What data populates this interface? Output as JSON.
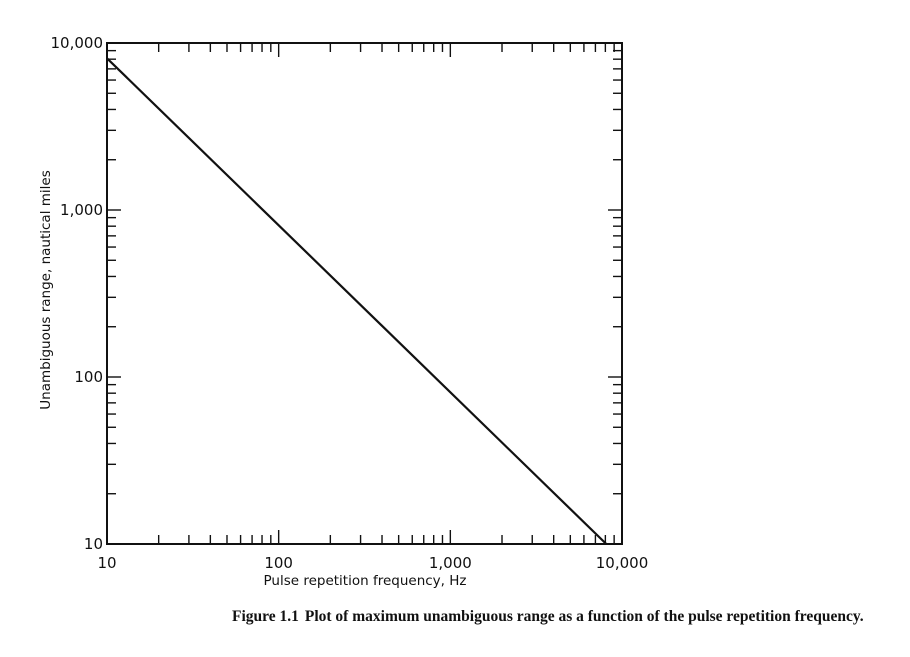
{
  "chart_data": {
    "type": "line",
    "title": "",
    "xlabel": "Pulse repetition frequency, Hz",
    "ylabel": "Unambiguous range, nautical miles",
    "xscale": "log",
    "yscale": "log",
    "xlim": [
      10,
      10000
    ],
    "ylim": [
      10,
      10000
    ],
    "x_tick_labels": [
      "10",
      "100",
      "1,000",
      "10,000"
    ],
    "y_tick_labels": [
      "10",
      "100",
      "1,000",
      "10,000"
    ],
    "x_tick_values": [
      10,
      100,
      1000,
      10000
    ],
    "y_tick_values": [
      10,
      100,
      1000,
      10000
    ],
    "grid": false,
    "legend": "none",
    "series": [
      {
        "x": [
          10,
          8100
        ],
        "y": [
          8100,
          10
        ],
        "color": "#111111"
      }
    ]
  },
  "caption": {
    "figure_number": "Figure 1.1",
    "text": "Plot of maximum unambiguous range as a function of the pulse repetition frequency."
  }
}
